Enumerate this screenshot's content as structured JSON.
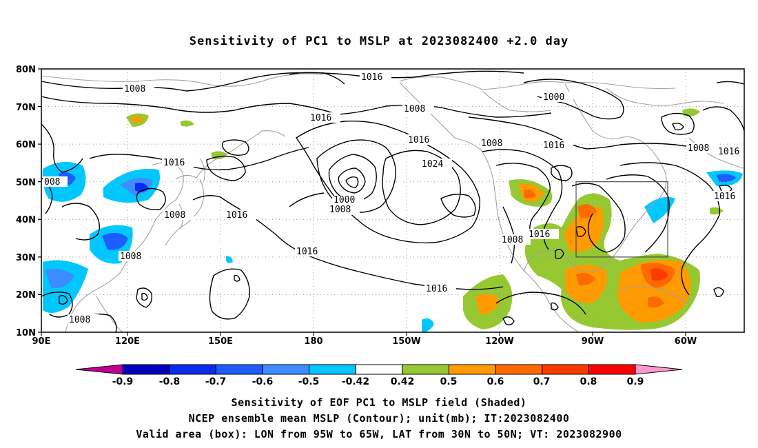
{
  "title": "Sensitivity of PC1 to MSLP at 2023082400 +2.0 day",
  "lat_labels": [
    "80N",
    "70N",
    "60N",
    "50N",
    "40N",
    "30N",
    "20N",
    "10N"
  ],
  "lon_labels": [
    "90E",
    "120E",
    "150E",
    "180",
    "150W",
    "120W",
    "90W",
    "60W"
  ],
  "contour_labels": {
    "c1": "1008",
    "c2": "1016",
    "c3": "1016",
    "c4": "1008",
    "c5": "1016",
    "c6": "1000",
    "c7": "1016",
    "c8": "1008",
    "c9": "1016",
    "c10": "1024",
    "c11": "1008",
    "c12": "008",
    "c13": "1016",
    "c14": "1008",
    "c15": "1016",
    "c16": "1000",
    "c17": "1008",
    "c18": "1016",
    "c19": "1008",
    "c20": "1016",
    "c21": "1008",
    "c22": "1016",
    "c23": "1016"
  },
  "colorbar": {
    "labels": [
      "-0.9",
      "-0.8",
      "-0.7",
      "-0.6",
      "-0.5",
      "-0.42",
      "0.42",
      "0.5",
      "0.6",
      "0.7",
      "0.8",
      "0.9"
    ],
    "colors": [
      "#0000c0",
      "#0a2cf0",
      "#1e5cff",
      "#3c8cff",
      "#00c8ff",
      "#ffffff",
      "#96c832",
      "#ff9a00",
      "#ff6a00",
      "#ff3a00",
      "#ff0000"
    ],
    "low_arrow_color": "#c00090",
    "high_arrow_color": "#ff99cc"
  },
  "footer": {
    "line1": "Sensitivity of EOF PC1 to MSLP field (Shaded)",
    "line2": "NCEP ensemble mean MSLP (Contour); unit(mb); IT:2023082400",
    "line3": "Valid area (box): LON from 95W to 65W, LAT from 30N to 50N; VT: 2023082900"
  }
}
